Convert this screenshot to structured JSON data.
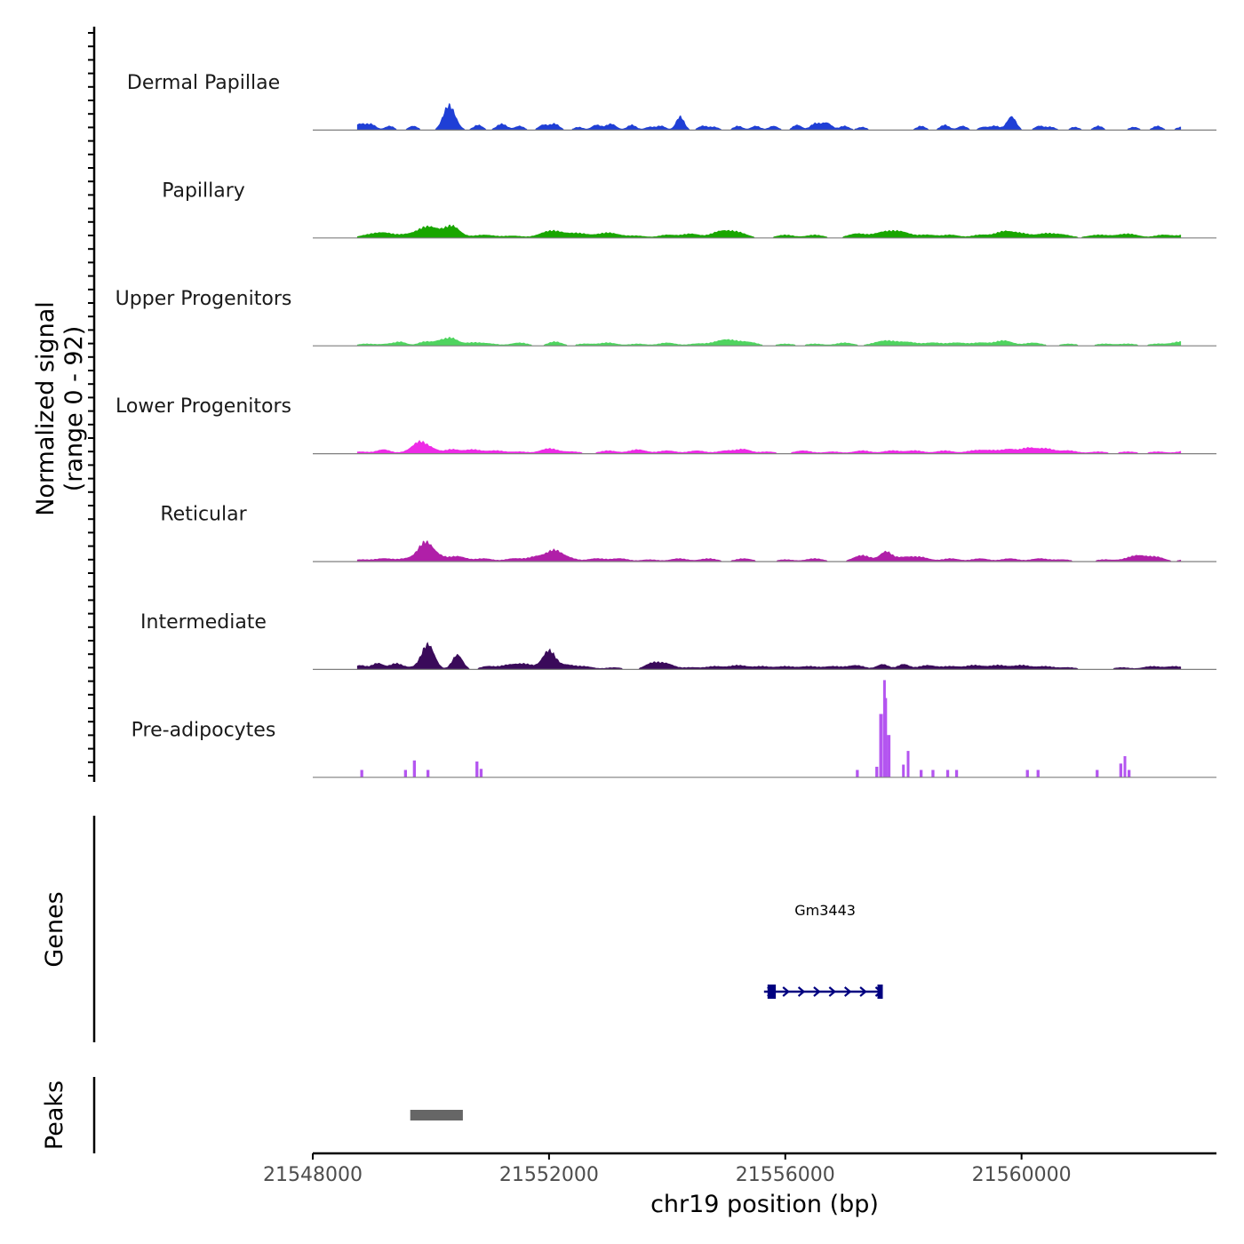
{
  "chart_data": {
    "type": "area",
    "title": "",
    "ylabel_line1": "Normalized signal",
    "ylabel_line2": "(range 0 - 92)",
    "xlabel": "chr19 position (bp)",
    "chromosome": "chr19",
    "xlim": [
      21548000,
      21563300
    ],
    "ylim": [
      0,
      92
    ],
    "xticks": [
      21548000,
      21552000,
      21556000,
      21560000
    ],
    "xtick_labels": [
      "21548000",
      "21552000",
      "21556000",
      "21560000"
    ],
    "series": [
      {
        "name": "Dermal Papillae",
        "color": "#1f3fd6",
        "peaks": [
          [
            21548800,
            6,
            100
          ],
          [
            21549000,
            5,
            80
          ],
          [
            21549300,
            4,
            80
          ],
          [
            21549700,
            4,
            80
          ],
          [
            21550280,
            18,
            90
          ],
          [
            21550380,
            9,
            90
          ],
          [
            21550800,
            5,
            80
          ],
          [
            21551200,
            6,
            90
          ],
          [
            21551500,
            4,
            80
          ],
          [
            21551900,
            5,
            80
          ],
          [
            21552100,
            6,
            80
          ],
          [
            21552500,
            3,
            80
          ],
          [
            21552800,
            5,
            80
          ],
          [
            21553050,
            6,
            90
          ],
          [
            21553400,
            5,
            80
          ],
          [
            21553700,
            3,
            80
          ],
          [
            21553900,
            4,
            80
          ],
          [
            21554220,
            13,
            70
          ],
          [
            21554600,
            4,
            80
          ],
          [
            21554800,
            3,
            80
          ],
          [
            21555200,
            4,
            80
          ],
          [
            21555500,
            4,
            80
          ],
          [
            21555800,
            4,
            80
          ],
          [
            21556200,
            5,
            80
          ],
          [
            21556500,
            6,
            80
          ],
          [
            21556700,
            7,
            90
          ],
          [
            21557000,
            4,
            80
          ],
          [
            21557300,
            3,
            80
          ],
          [
            21558300,
            4,
            80
          ],
          [
            21558700,
            5,
            80
          ],
          [
            21559000,
            4,
            80
          ],
          [
            21559350,
            3,
            80
          ],
          [
            21559550,
            4,
            80
          ],
          [
            21559830,
            13,
            80
          ],
          [
            21560300,
            4,
            80
          ],
          [
            21560500,
            3,
            80
          ],
          [
            21560900,
            3,
            80
          ],
          [
            21561300,
            4,
            80
          ],
          [
            21561900,
            3,
            80
          ],
          [
            21562300,
            4,
            80
          ],
          [
            21562700,
            3,
            80
          ]
        ]
      },
      {
        "name": "Papillary",
        "color": "#19a600",
        "peaks": [
          [
            21548900,
            2,
            150
          ],
          [
            21549200,
            5,
            180
          ],
          [
            21549550,
            2,
            120
          ],
          [
            21549800,
            4,
            150
          ],
          [
            21550000,
            9,
            160
          ],
          [
            21550360,
            11,
            130
          ],
          [
            21550900,
            3,
            200
          ],
          [
            21551400,
            2,
            150
          ],
          [
            21552050,
            7,
            200
          ],
          [
            21552500,
            4,
            160
          ],
          [
            21553000,
            5,
            200
          ],
          [
            21553500,
            2,
            150
          ],
          [
            21554000,
            3,
            150
          ],
          [
            21554400,
            4,
            150
          ],
          [
            21554900,
            6,
            160
          ],
          [
            21555200,
            5,
            160
          ],
          [
            21556000,
            3,
            150
          ],
          [
            21556500,
            3,
            150
          ],
          [
            21557200,
            4,
            150
          ],
          [
            21557700,
            6,
            200
          ],
          [
            21558000,
            4,
            150
          ],
          [
            21558400,
            3,
            150
          ],
          [
            21558800,
            3,
            150
          ],
          [
            21559300,
            3,
            150
          ],
          [
            21559700,
            6,
            150
          ],
          [
            21560000,
            4,
            150
          ],
          [
            21560400,
            4,
            150
          ],
          [
            21560700,
            3,
            150
          ],
          [
            21561300,
            3,
            180
          ],
          [
            21561800,
            4,
            180
          ],
          [
            21562400,
            3,
            150
          ],
          [
            21562800,
            3,
            150
          ]
        ]
      },
      {
        "name": "Upper Progenitors",
        "color": "#4fd45f",
        "peaks": [
          [
            21548900,
            2,
            150
          ],
          [
            21549300,
            2,
            150
          ],
          [
            21549500,
            3,
            100
          ],
          [
            21549900,
            4,
            120
          ],
          [
            21550150,
            4,
            100
          ],
          [
            21550350,
            7,
            110
          ],
          [
            21550700,
            3,
            150
          ],
          [
            21551000,
            2,
            150
          ],
          [
            21551500,
            3,
            150
          ],
          [
            21552100,
            4,
            120
          ],
          [
            21552600,
            2,
            150
          ],
          [
            21553000,
            3,
            150
          ],
          [
            21553500,
            2,
            150
          ],
          [
            21554000,
            3,
            150
          ],
          [
            21554500,
            2,
            150
          ],
          [
            21555000,
            6,
            200
          ],
          [
            21555400,
            3,
            150
          ],
          [
            21556000,
            2,
            150
          ],
          [
            21556500,
            2,
            150
          ],
          [
            21557000,
            3,
            150
          ],
          [
            21557700,
            5,
            200
          ],
          [
            21558100,
            3,
            150
          ],
          [
            21558500,
            3,
            150
          ],
          [
            21558900,
            3,
            150
          ],
          [
            21559300,
            3,
            150
          ],
          [
            21559700,
            5,
            150
          ],
          [
            21560200,
            3,
            150
          ],
          [
            21560800,
            2,
            150
          ],
          [
            21561400,
            2,
            150
          ],
          [
            21561800,
            2,
            150
          ],
          [
            21562300,
            2,
            150
          ],
          [
            21562700,
            4,
            150
          ]
        ]
      },
      {
        "name": "Lower Progenitors",
        "color": "#ee2ae6",
        "peaks": [
          [
            21548800,
            2,
            150
          ],
          [
            21549200,
            4,
            120
          ],
          [
            21549600,
            2,
            120
          ],
          [
            21549800,
            10,
            110
          ],
          [
            21550000,
            5,
            120
          ],
          [
            21550350,
            4,
            120
          ],
          [
            21550700,
            4,
            150
          ],
          [
            21551100,
            3,
            150
          ],
          [
            21551500,
            2,
            150
          ],
          [
            21552000,
            5,
            150
          ],
          [
            21552400,
            2,
            150
          ],
          [
            21553000,
            3,
            150
          ],
          [
            21553500,
            4,
            150
          ],
          [
            21554000,
            3,
            150
          ],
          [
            21554500,
            3,
            150
          ],
          [
            21555000,
            3,
            150
          ],
          [
            21555300,
            4,
            120
          ],
          [
            21555700,
            2,
            150
          ],
          [
            21556300,
            3,
            150
          ],
          [
            21556800,
            2,
            150
          ],
          [
            21557300,
            3,
            150
          ],
          [
            21557800,
            3,
            150
          ],
          [
            21558200,
            3,
            150
          ],
          [
            21558700,
            3,
            150
          ],
          [
            21559200,
            3,
            150
          ],
          [
            21559500,
            3,
            150
          ],
          [
            21559800,
            4,
            120
          ],
          [
            21560100,
            5,
            120
          ],
          [
            21560400,
            5,
            150
          ],
          [
            21560800,
            3,
            150
          ],
          [
            21561300,
            2,
            150
          ],
          [
            21561800,
            2,
            150
          ],
          [
            21562300,
            2,
            150
          ],
          [
            21562800,
            3,
            150
          ]
        ]
      },
      {
        "name": "Reticular",
        "color": "#b01fa8",
        "peaks": [
          [
            21548800,
            2,
            150
          ],
          [
            21549200,
            3,
            150
          ],
          [
            21549600,
            3,
            150
          ],
          [
            21549900,
            17,
            120
          ],
          [
            21550100,
            5,
            130
          ],
          [
            21550450,
            5,
            150
          ],
          [
            21550900,
            3,
            150
          ],
          [
            21551400,
            3,
            150
          ],
          [
            21551800,
            5,
            150
          ],
          [
            21552080,
            9,
            120
          ],
          [
            21552300,
            4,
            150
          ],
          [
            21552800,
            3,
            150
          ],
          [
            21553200,
            3,
            150
          ],
          [
            21553700,
            2,
            150
          ],
          [
            21554200,
            3,
            150
          ],
          [
            21554700,
            3,
            150
          ],
          [
            21555300,
            3,
            150
          ],
          [
            21556000,
            2,
            150
          ],
          [
            21556500,
            3,
            150
          ],
          [
            21557300,
            6,
            150
          ],
          [
            21557700,
            9,
            100
          ],
          [
            21558000,
            4,
            150
          ],
          [
            21558300,
            4,
            150
          ],
          [
            21558800,
            3,
            150
          ],
          [
            21559300,
            3,
            150
          ],
          [
            21559800,
            3,
            150
          ],
          [
            21560300,
            3,
            150
          ],
          [
            21560700,
            2,
            150
          ],
          [
            21561400,
            2,
            150
          ],
          [
            21561800,
            2,
            150
          ],
          [
            21562000,
            5,
            150
          ],
          [
            21562300,
            4,
            130
          ],
          [
            21562800,
            2,
            150
          ]
        ]
      },
      {
        "name": "Intermediate",
        "color": "#3a0a5a",
        "peaks": [
          [
            21548800,
            4,
            100
          ],
          [
            21549100,
            6,
            100
          ],
          [
            21549400,
            5,
            100
          ],
          [
            21549600,
            2,
            150
          ],
          [
            21549950,
            24,
            110
          ],
          [
            21550450,
            14,
            90
          ],
          [
            21550950,
            3,
            120
          ],
          [
            21551300,
            4,
            150
          ],
          [
            21551600,
            5,
            150
          ],
          [
            21552000,
            18,
            110
          ],
          [
            21552300,
            4,
            120
          ],
          [
            21552600,
            3,
            150
          ],
          [
            21553100,
            2,
            150
          ],
          [
            21553750,
            6,
            130
          ],
          [
            21554000,
            5,
            130
          ],
          [
            21554400,
            2,
            150
          ],
          [
            21554800,
            3,
            150
          ],
          [
            21555200,
            4,
            150
          ],
          [
            21555600,
            3,
            150
          ],
          [
            21556000,
            3,
            150
          ],
          [
            21556400,
            3,
            150
          ],
          [
            21556800,
            3,
            150
          ],
          [
            21557200,
            4,
            150
          ],
          [
            21557650,
            5,
            100
          ],
          [
            21558000,
            5,
            100
          ],
          [
            21558400,
            4,
            150
          ],
          [
            21558800,
            3,
            150
          ],
          [
            21559200,
            4,
            150
          ],
          [
            21559600,
            4,
            150
          ],
          [
            21560000,
            4,
            150
          ],
          [
            21560400,
            3,
            150
          ],
          [
            21560800,
            2,
            150
          ],
          [
            21561700,
            2,
            150
          ],
          [
            21562200,
            3,
            150
          ],
          [
            21562600,
            3,
            150
          ]
        ]
      },
      {
        "name": "Pre-adipocytes",
        "color": "#b455f0",
        "bars": [
          [
            21548830,
            7,
            50
          ],
          [
            21549570,
            7,
            50
          ],
          [
            21549720,
            16,
            50
          ],
          [
            21549950,
            7,
            50
          ],
          [
            21550780,
            15,
            50
          ],
          [
            21550850,
            8,
            50
          ],
          [
            21557220,
            7,
            50
          ],
          [
            21557550,
            10,
            50
          ],
          [
            21557620,
            60,
            60
          ],
          [
            21557680,
            92,
            20
          ],
          [
            21557700,
            75,
            40
          ],
          [
            21557750,
            40,
            60
          ],
          [
            21558000,
            12,
            40
          ],
          [
            21558080,
            25,
            40
          ],
          [
            21558300,
            7,
            50
          ],
          [
            21558500,
            7,
            50
          ],
          [
            21558750,
            7,
            50
          ],
          [
            21558900,
            7,
            50
          ],
          [
            21560100,
            7,
            50
          ],
          [
            21560280,
            7,
            50
          ],
          [
            21561280,
            7,
            50
          ],
          [
            21561680,
            13,
            50
          ],
          [
            21561750,
            20,
            30
          ],
          [
            21561820,
            7,
            50
          ]
        ]
      }
    ],
    "genes": [
      {
        "name": "Gm3443",
        "start": 21555700,
        "end": 21557650,
        "strand": "+",
        "color": "#000080",
        "exons": [
          [
            21555700,
            21555840
          ],
          [
            21557560,
            21557650
          ]
        ]
      }
    ],
    "genes_label": "Genes",
    "peaks_label": "Peaks",
    "peak_regions": [
      {
        "start": 21549650,
        "end": 21550540,
        "color": "#666666"
      }
    ]
  }
}
